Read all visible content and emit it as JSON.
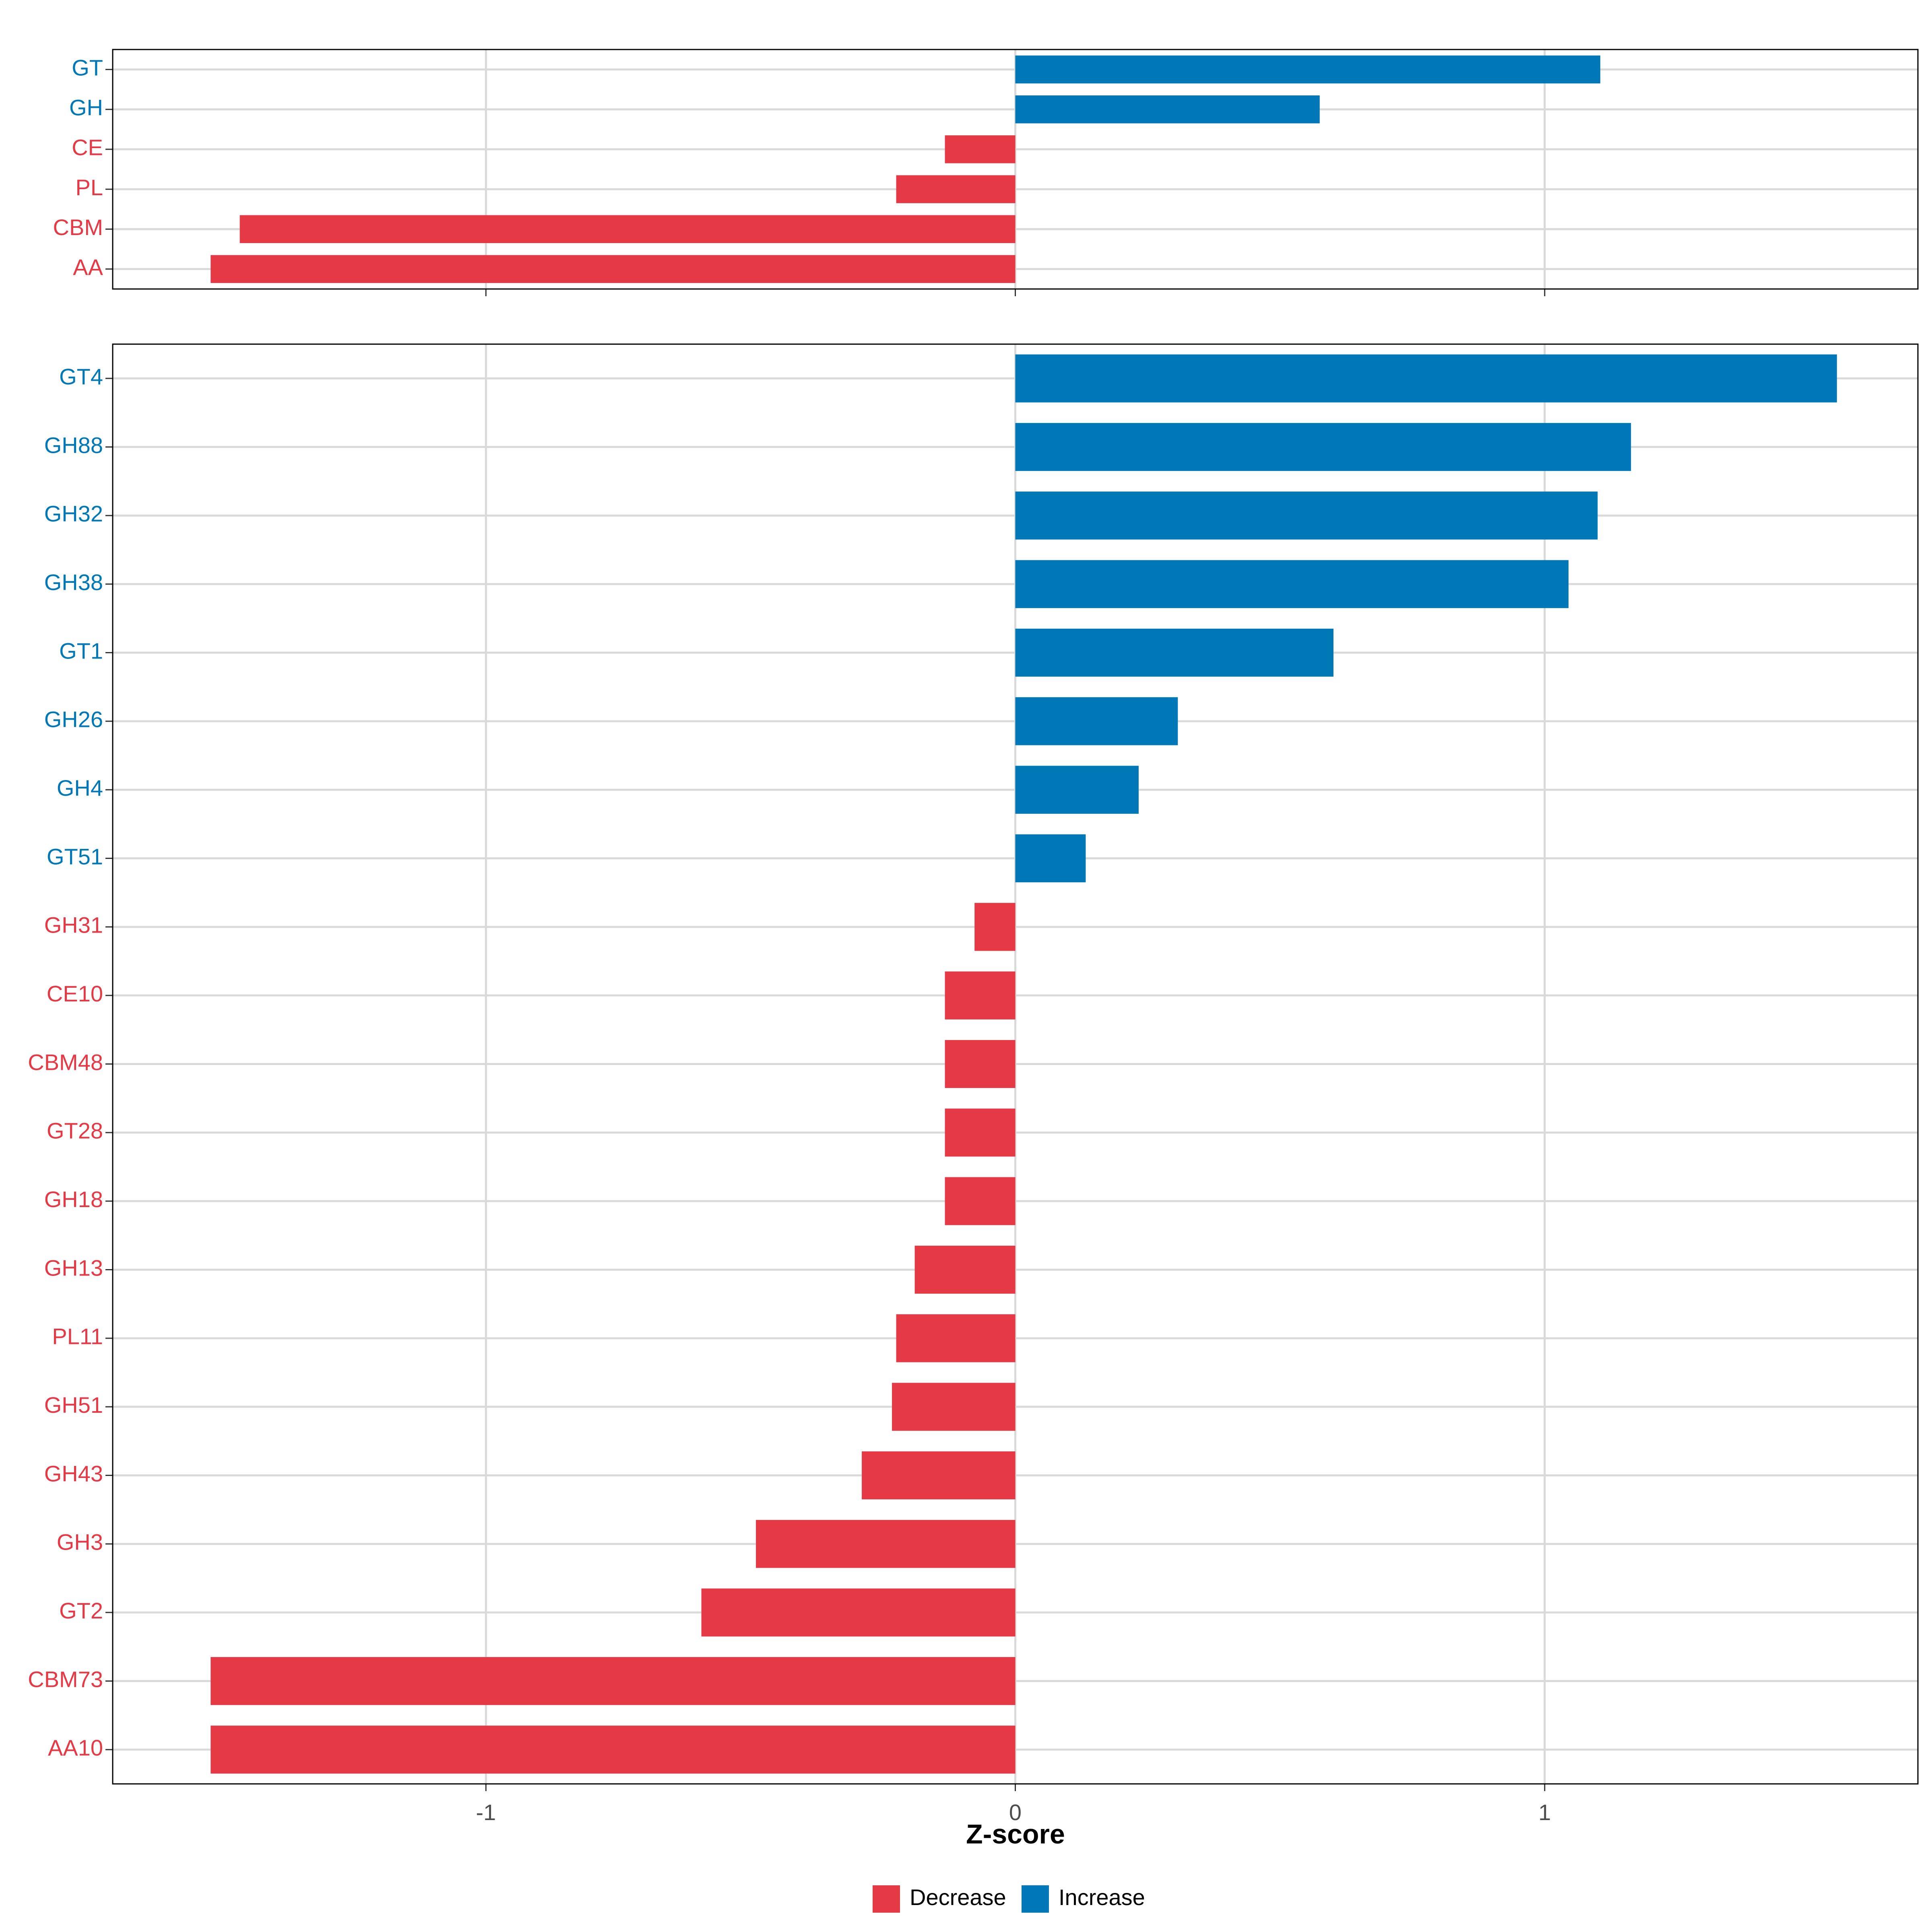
{
  "chart_data": [
    {
      "type": "bar",
      "orientation": "horizontal",
      "panel": "top",
      "categories": [
        "GT",
        "GH",
        "CE",
        "PL",
        "CBM",
        "AA"
      ],
      "values": [
        1.105,
        0.575,
        -0.133,
        -0.225,
        -1.465,
        -1.52
      ],
      "direction": [
        "Increase",
        "Increase",
        "Decrease",
        "Decrease",
        "Decrease",
        "Decrease"
      ],
      "xlim": [
        -1.705,
        1.705
      ],
      "xticks": [
        -1,
        0,
        1
      ],
      "grid": true
    },
    {
      "type": "bar",
      "orientation": "horizontal",
      "panel": "bottom",
      "categories": [
        "GT4",
        "GH88",
        "GH32",
        "GH38",
        "GT1",
        "GH26",
        "GH4",
        "GT51",
        "GH31",
        "CE10",
        "CBM48",
        "GT28",
        "GH18",
        "GH13",
        "PL11",
        "GH51",
        "GH43",
        "GH3",
        "GT2",
        "CBM73",
        "AA10"
      ],
      "values": [
        1.552,
        1.163,
        1.1,
        1.045,
        0.601,
        0.307,
        0.233,
        0.133,
        -0.077,
        -0.133,
        -0.133,
        -0.133,
        -0.133,
        -0.19,
        -0.225,
        -0.233,
        -0.29,
        -0.49,
        -0.593,
        -1.52,
        -1.52
      ],
      "direction": [
        "Increase",
        "Increase",
        "Increase",
        "Increase",
        "Increase",
        "Increase",
        "Increase",
        "Increase",
        "Decrease",
        "Decrease",
        "Decrease",
        "Decrease",
        "Decrease",
        "Decrease",
        "Decrease",
        "Decrease",
        "Decrease",
        "Decrease",
        "Decrease",
        "Decrease",
        "Decrease"
      ],
      "xlim": [
        -1.705,
        1.705
      ],
      "xticks": [
        -1,
        0,
        1
      ],
      "xlabel": "Z-score",
      "grid": true
    }
  ],
  "xtick_labels": [
    "-1",
    "0",
    "1"
  ],
  "xlabel": "Z-score",
  "legend": {
    "position": "bottom",
    "items": [
      {
        "label": "Decrease",
        "color": "#E63946"
      },
      {
        "label": "Increase",
        "color": "#0077B6"
      }
    ]
  },
  "colors": {
    "Decrease": "#E63946",
    "Increase": "#0077B6"
  }
}
